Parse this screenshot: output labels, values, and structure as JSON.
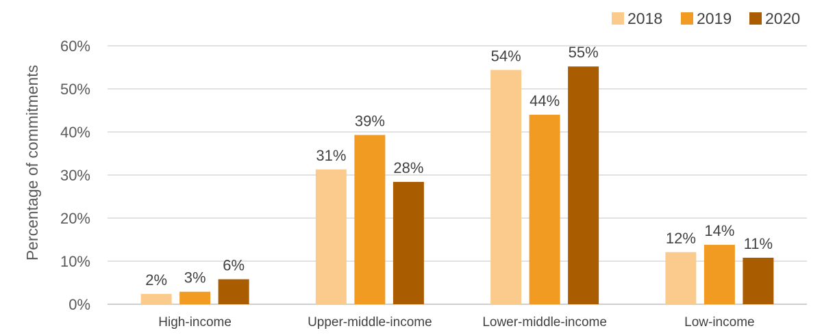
{
  "chart_data": {
    "type": "bar",
    "title": "",
    "xlabel": "",
    "ylabel": "Percentage of commitments",
    "ylim": [
      0,
      60
    ],
    "yticks": [
      "0%",
      "10%",
      "20%",
      "30%",
      "40%",
      "50%",
      "60%"
    ],
    "ytick_values": [
      0,
      10,
      20,
      30,
      40,
      50,
      60
    ],
    "grid": true,
    "legend_position": "top-right",
    "categories": [
      "High-income",
      "Upper-middle-income",
      "Lower-middle-income",
      "Low-income"
    ],
    "series": [
      {
        "name": "2018",
        "color": "#FACB8C",
        "values": [
          2.4,
          31.3,
          54.4,
          12.1
        ],
        "labels": [
          "2%",
          "31%",
          "54%",
          "12%"
        ]
      },
      {
        "name": "2019",
        "color": "#F29B22",
        "values": [
          2.9,
          39.3,
          44.0,
          13.8
        ],
        "labels": [
          "3%",
          "39%",
          "44%",
          "14%"
        ]
      },
      {
        "name": "2020",
        "color": "#A95C00",
        "values": [
          5.8,
          28.4,
          55.2,
          10.8
        ],
        "labels": [
          "6%",
          "28%",
          "55%",
          "11%"
        ]
      }
    ]
  }
}
